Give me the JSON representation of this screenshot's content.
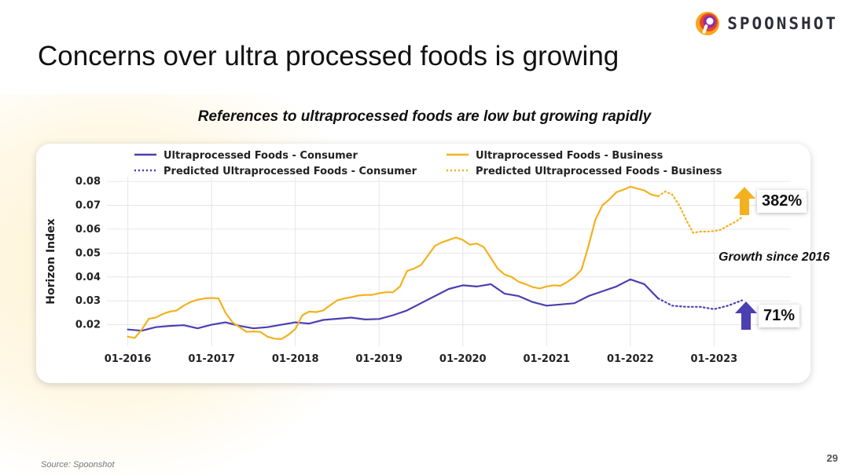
{
  "brand": {
    "name": "SPOONSHOT",
    "colors": [
      "#f4a81c",
      "#e8452c",
      "#8f2fa0"
    ]
  },
  "slide": {
    "title": "Concerns over ultra processed foods is growing",
    "subtitle": "References to ultraprocessed foods are low but growing rapidly",
    "growth_label": "Growth since 2016",
    "source": "Source: Spoonshot",
    "page_number": "29"
  },
  "badges": {
    "business": {
      "value": "382%",
      "arrow_color": "#f2b21f",
      "icon": "arrow-up-icon"
    },
    "consumer": {
      "value": "71%",
      "arrow_color": "#4b3fb2",
      "icon": "arrow-up-icon"
    }
  },
  "chart_data": {
    "type": "line",
    "title": "",
    "xlabel": "",
    "ylabel": "Horizon Index",
    "xlim": [
      "2015-10",
      "2023-12"
    ],
    "ylim": [
      0.011,
      0.082
    ],
    "yticks": [
      0.02,
      0.03,
      0.04,
      0.05,
      0.06,
      0.07,
      0.08
    ],
    "ytick_labels": [
      "0.02",
      "0.03",
      "0.04",
      "0.05",
      "0.06",
      "0.07",
      "0.08"
    ],
    "xticks": [
      "2016-01",
      "2017-01",
      "2018-01",
      "2019-01",
      "2020-01",
      "2021-01",
      "2022-01",
      "2023-01"
    ],
    "xtick_labels": [
      "01-2016",
      "01-2017",
      "01-2018",
      "01-2019",
      "01-2020",
      "01-2021",
      "01-2022",
      "01-2023"
    ],
    "grid": true,
    "legend_position": "top",
    "series": [
      {
        "name": "Ultraprocessed Foods - Consumer",
        "color": "#4b3fb2",
        "style": "solid",
        "x": [
          "2016-01",
          "2016-03",
          "2016-05",
          "2016-07",
          "2016-09",
          "2016-11",
          "2017-01",
          "2017-03",
          "2017-05",
          "2017-07",
          "2017-09",
          "2017-11",
          "2018-01",
          "2018-03",
          "2018-05",
          "2018-07",
          "2018-09",
          "2018-11",
          "2019-01",
          "2019-03",
          "2019-05",
          "2019-07",
          "2019-09",
          "2019-11",
          "2020-01",
          "2020-03",
          "2020-05",
          "2020-07",
          "2020-09",
          "2020-11",
          "2021-01",
          "2021-03",
          "2021-05",
          "2021-07",
          "2021-09",
          "2021-11",
          "2022-01",
          "2022-03",
          "2022-05"
        ],
        "values": [
          0.018,
          0.0175,
          0.019,
          0.0195,
          0.0198,
          0.0185,
          0.02,
          0.021,
          0.0195,
          0.0185,
          0.019,
          0.02,
          0.021,
          0.0205,
          0.022,
          0.0225,
          0.023,
          0.0222,
          0.0224,
          0.024,
          0.026,
          0.029,
          0.032,
          0.035,
          0.0365,
          0.036,
          0.037,
          0.033,
          0.032,
          0.0295,
          0.028,
          0.0285,
          0.029,
          0.032,
          0.034,
          0.036,
          0.039,
          0.037,
          0.031
        ]
      },
      {
        "name": "Ultraprocessed Foods - Business",
        "color": "#f2b21f",
        "style": "solid",
        "x": [
          "2016-01",
          "2016-02",
          "2016-03",
          "2016-04",
          "2016-05",
          "2016-06",
          "2016-07",
          "2016-08",
          "2016-09",
          "2016-10",
          "2016-11",
          "2016-12",
          "2017-01",
          "2017-02",
          "2017-03",
          "2017-04",
          "2017-05",
          "2017-06",
          "2017-07",
          "2017-08",
          "2017-09",
          "2017-10",
          "2017-11",
          "2017-12",
          "2018-01",
          "2018-02",
          "2018-03",
          "2018-04",
          "2018-05",
          "2018-06",
          "2018-07",
          "2018-08",
          "2018-09",
          "2018-10",
          "2018-11",
          "2018-12",
          "2019-01",
          "2019-02",
          "2019-03",
          "2019-04",
          "2019-05",
          "2019-06",
          "2019-07",
          "2019-08",
          "2019-09",
          "2019-10",
          "2019-11",
          "2019-12",
          "2020-01",
          "2020-02",
          "2020-03",
          "2020-04",
          "2020-05",
          "2020-06",
          "2020-07",
          "2020-08",
          "2020-09",
          "2020-10",
          "2020-11",
          "2020-12",
          "2021-01",
          "2021-02",
          "2021-03",
          "2021-04",
          "2021-05",
          "2021-06",
          "2021-07",
          "2021-08",
          "2021-09",
          "2021-10",
          "2021-11",
          "2021-12",
          "2022-01",
          "2022-02",
          "2022-03",
          "2022-04",
          "2022-05"
        ],
        "values": [
          0.015,
          0.0145,
          0.018,
          0.0225,
          0.023,
          0.0245,
          0.0255,
          0.026,
          0.028,
          0.0295,
          0.0305,
          0.031,
          0.0312,
          0.031,
          0.025,
          0.021,
          0.019,
          0.017,
          0.0172,
          0.017,
          0.015,
          0.0142,
          0.014,
          0.0158,
          0.0182,
          0.024,
          0.0255,
          0.0253,
          0.026,
          0.0282,
          0.0302,
          0.031,
          0.0315,
          0.0322,
          0.0325,
          0.0325,
          0.0332,
          0.0336,
          0.0336,
          0.036,
          0.0425,
          0.0435,
          0.045,
          0.049,
          0.053,
          0.0545,
          0.0555,
          0.0565,
          0.0555,
          0.0535,
          0.054,
          0.0525,
          0.048,
          0.0435,
          0.041,
          0.04,
          0.038,
          0.037,
          0.0358,
          0.0352,
          0.036,
          0.0365,
          0.0363,
          0.038,
          0.04,
          0.043,
          0.053,
          0.064,
          0.07,
          0.0725,
          0.0755,
          0.0765,
          0.0778,
          0.077,
          0.0762,
          0.0745,
          0.0738
        ]
      },
      {
        "name": "Predicted Ultraprocessed Foods - Consumer",
        "color": "#4b3fb2",
        "style": "dotted",
        "x": [
          "2022-05",
          "2022-07",
          "2022-09",
          "2022-11",
          "2023-01",
          "2023-03",
          "2023-05"
        ],
        "values": [
          0.031,
          0.028,
          0.0275,
          0.0275,
          0.0265,
          0.028,
          0.0302
        ]
      },
      {
        "name": "Predicted Ultraprocessed Foods - Business",
        "color": "#f2b21f",
        "style": "dotted",
        "x": [
          "2022-05",
          "2022-06",
          "2022-07",
          "2022-08",
          "2022-09",
          "2022-10",
          "2022-11",
          "2022-12",
          "2023-01",
          "2023-02",
          "2023-03",
          "2023-04",
          "2023-05"
        ],
        "values": [
          0.0738,
          0.0758,
          0.0745,
          0.07,
          0.064,
          0.0585,
          0.059,
          0.059,
          0.0592,
          0.0598,
          0.0615,
          0.063,
          0.065
        ]
      }
    ]
  }
}
